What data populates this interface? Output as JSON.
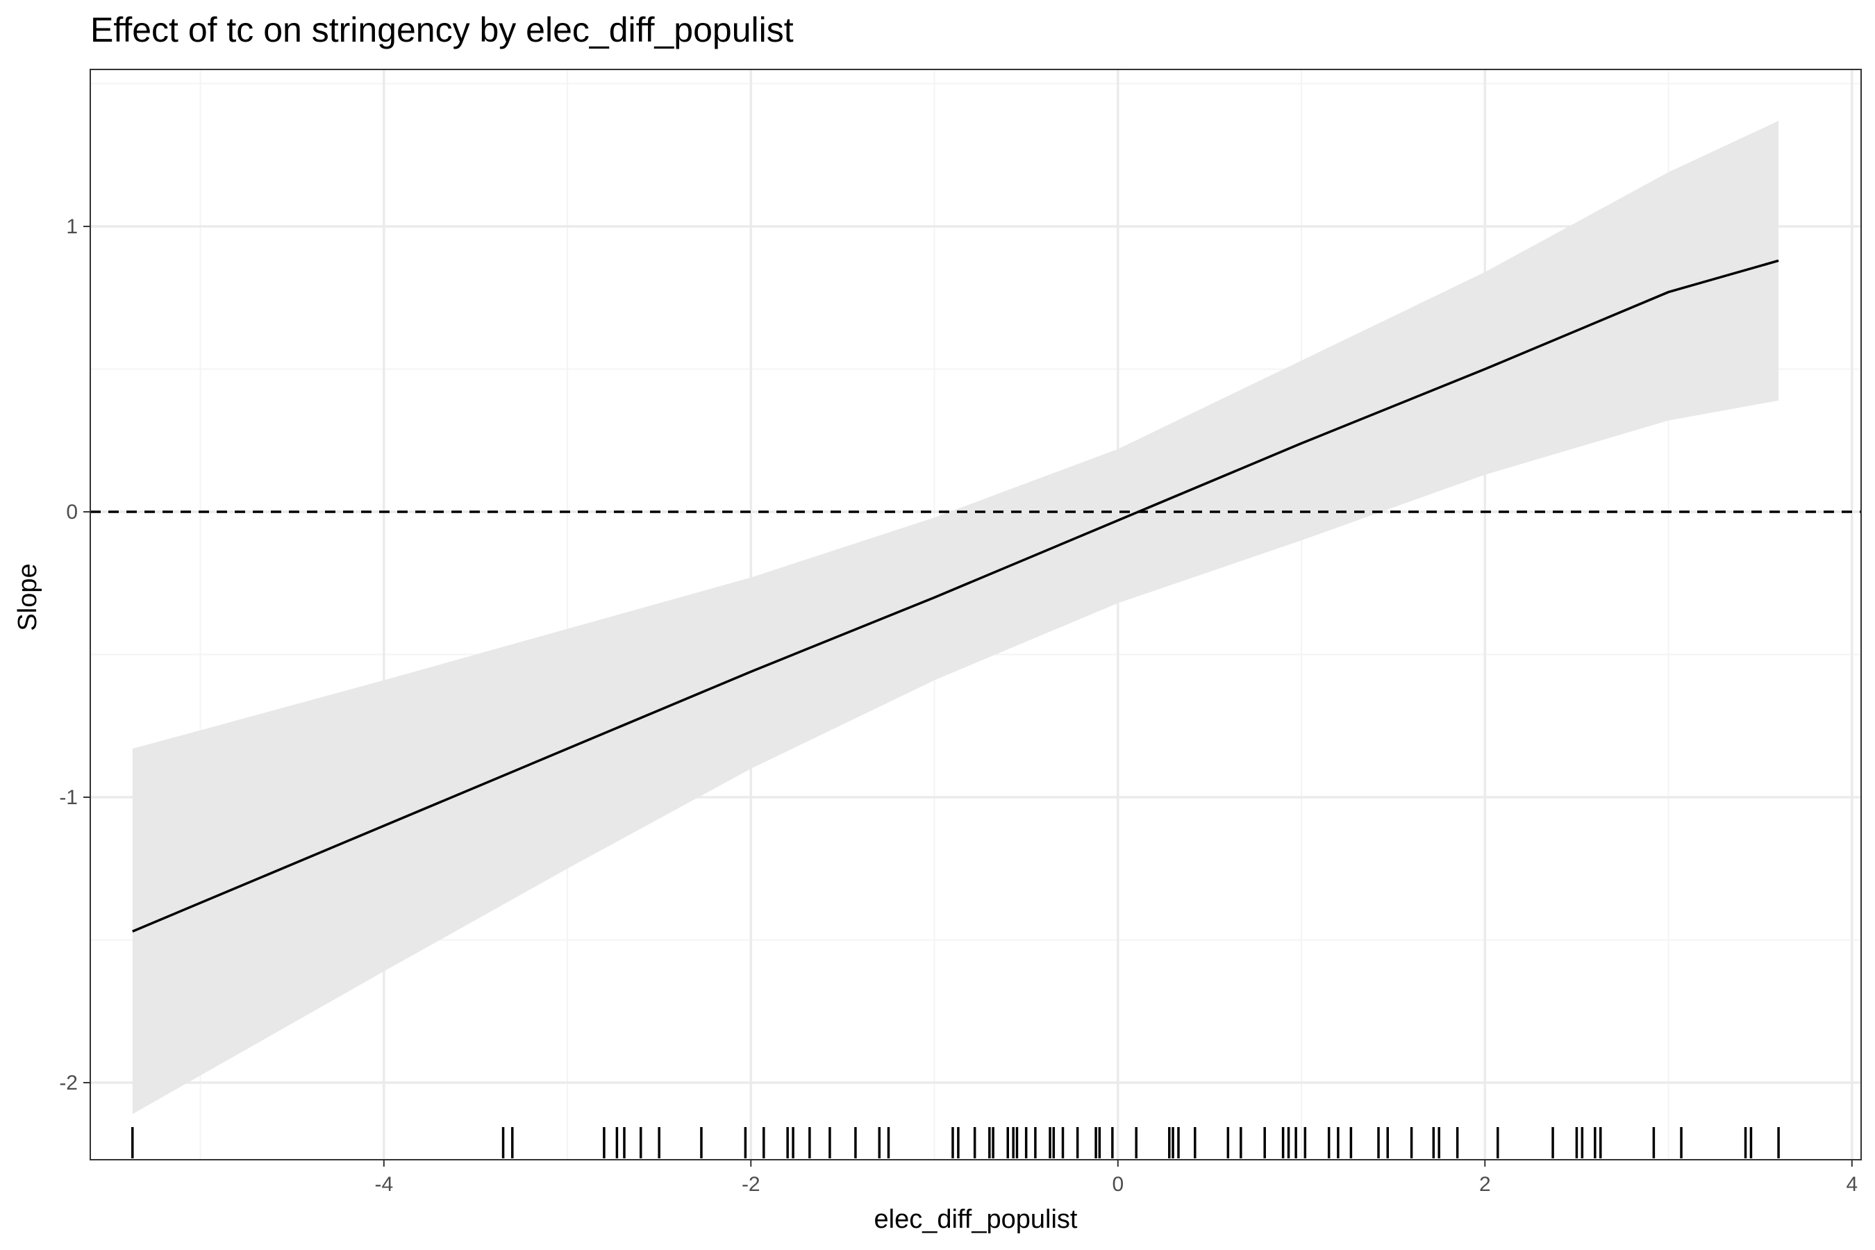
{
  "chart_data": {
    "type": "line",
    "title": "Effect of tc on stringency by elec_diff_populist",
    "xlabel": "elec_diff_populist",
    "ylabel": "Slope",
    "xlim": [
      -5.6,
      4.05
    ],
    "ylim": [
      -2.27,
      1.55
    ],
    "x_ticks": [
      -4,
      -2,
      0,
      2,
      4
    ],
    "x_tick_labels": [
      "-4",
      "-2",
      "0",
      "2",
      "4"
    ],
    "y_ticks": [
      -2,
      -1,
      0,
      1
    ],
    "y_tick_labels": [
      "-2",
      "-1",
      "0",
      "1"
    ],
    "grid": true,
    "reference_line": {
      "y": 0,
      "style": "dashed"
    },
    "series": [
      {
        "x": [
          -5.37,
          -4.0,
          -3.0,
          -2.0,
          -1.0,
          0.0,
          1.0,
          2.0,
          3.0,
          3.6
        ],
        "y": [
          -1.47,
          -1.1,
          -0.83,
          -0.56,
          -0.3,
          -0.03,
          0.24,
          0.5,
          0.77,
          0.88
        ],
        "ci_lower": [
          -2.11,
          -1.61,
          -1.25,
          -0.9,
          -0.59,
          -0.32,
          -0.1,
          0.13,
          0.32,
          0.39
        ],
        "ci_upper": [
          -0.83,
          -0.59,
          -0.41,
          -0.23,
          -0.02,
          0.22,
          0.53,
          0.84,
          1.19,
          1.37
        ]
      }
    ],
    "rug": [
      -5.37,
      -3.35,
      -3.3,
      -2.8,
      -2.73,
      -2.69,
      -2.6,
      -2.5,
      -2.27,
      -2.03,
      -1.93,
      -1.8,
      -1.77,
      -1.68,
      -1.57,
      -1.43,
      -1.3,
      -1.25,
      -0.9,
      -0.87,
      -0.78,
      -0.7,
      -0.68,
      -0.6,
      -0.57,
      -0.55,
      -0.5,
      -0.45,
      -0.37,
      -0.35,
      -0.3,
      -0.22,
      -0.12,
      -0.1,
      -0.03,
      0.1,
      0.28,
      0.3,
      0.33,
      0.42,
      0.6,
      0.67,
      0.8,
      0.9,
      0.93,
      0.97,
      1.02,
      1.15,
      1.2,
      1.27,
      1.42,
      1.47,
      1.6,
      1.72,
      1.75,
      1.85,
      2.07,
      2.37,
      2.5,
      2.53,
      2.6,
      2.63,
      2.92,
      3.07,
      3.42,
      3.45,
      3.6
    ]
  },
  "colors": {
    "band": "#e8e8e8",
    "line": "#000000",
    "grid_major": "#ebebeb",
    "grid_minor": "#f4f4f4",
    "panel_border": "#333333",
    "tick_label": "#4d4d4d"
  }
}
